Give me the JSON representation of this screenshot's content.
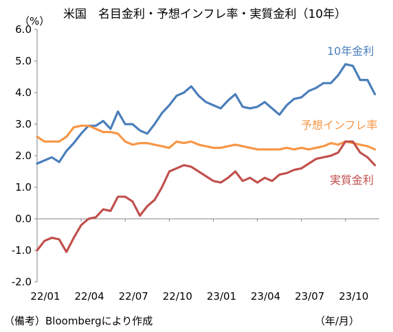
{
  "header": {
    "title": "米国　名目金利・予想インフレ率・実質金利（10年）",
    "unit": "（%）"
  },
  "footer": {
    "note": "（備考）Bloombergにより作成",
    "x_unit": "（年/月）"
  },
  "colors": {
    "nominal": "#4a7ebb",
    "inflation": "#f79646",
    "real": "#c0504d",
    "axis": "#808080"
  },
  "chart_data": {
    "type": "line",
    "title": "米国　名目金利・予想インフレ率・実質金利（10年）",
    "ylabel": "（%）",
    "xlabel": "（年/月）",
    "ylim": [
      -2.0,
      6.0
    ],
    "yticks": [
      "6.0",
      "5.0",
      "4.0",
      "3.0",
      "2.0",
      "1.0",
      "0.0",
      "-1.0",
      "-2.0"
    ],
    "ytick_values": [
      6,
      5,
      4,
      3,
      2,
      1,
      0,
      -1,
      -2
    ],
    "xticks": [
      "22/01",
      "22/04",
      "22/07",
      "22/10",
      "23/01",
      "23/04",
      "23/07",
      "23/10"
    ],
    "xtick_positions": [
      0,
      3,
      6,
      9,
      12,
      15,
      18,
      21
    ],
    "xlim": [
      0,
      23.3
    ],
    "grid": false,
    "series": [
      {
        "name": "10年金利",
        "color": "#4a7ebb",
        "x": [
          0,
          0.5,
          1,
          1.5,
          2,
          2.5,
          3,
          3.5,
          4,
          4.5,
          5,
          5.5,
          6,
          6.5,
          7,
          7.5,
          8,
          8.5,
          9,
          9.5,
          10,
          10.5,
          11,
          11.5,
          12,
          12.5,
          13,
          13.5,
          14,
          14.5,
          15,
          15.5,
          16,
          16.5,
          17,
          17.5,
          18,
          18.5,
          19,
          19.5,
          20,
          20.5,
          21,
          21.5,
          22,
          22.5,
          23
        ],
        "y": [
          1.75,
          1.85,
          1.95,
          1.8,
          2.15,
          2.4,
          2.7,
          2.95,
          2.95,
          3.1,
          2.85,
          3.4,
          3.0,
          3.0,
          2.8,
          2.7,
          3.0,
          3.35,
          3.6,
          3.9,
          4.0,
          4.2,
          3.9,
          3.7,
          3.6,
          3.5,
          3.75,
          3.95,
          3.55,
          3.5,
          3.55,
          3.7,
          3.5,
          3.3,
          3.6,
          3.8,
          3.85,
          4.05,
          4.15,
          4.3,
          4.3,
          4.55,
          4.9,
          4.85,
          4.4,
          4.4,
          3.95
        ],
        "label": "10年金利"
      },
      {
        "name": "予想インフレ率",
        "color": "#f79646",
        "x": [
          0,
          0.5,
          1,
          1.5,
          2,
          2.5,
          3,
          3.5,
          4,
          4.5,
          5,
          5.5,
          6,
          6.5,
          7,
          7.5,
          8,
          8.5,
          9,
          9.5,
          10,
          10.5,
          11,
          11.5,
          12,
          12.5,
          13,
          13.5,
          14,
          14.5,
          15,
          15.5,
          16,
          16.5,
          17,
          17.5,
          18,
          18.5,
          19,
          19.5,
          20,
          20.5,
          21,
          21.5,
          22,
          22.5,
          23
        ],
        "y": [
          2.6,
          2.45,
          2.45,
          2.45,
          2.6,
          2.9,
          2.95,
          2.95,
          2.85,
          2.75,
          2.75,
          2.7,
          2.45,
          2.35,
          2.4,
          2.4,
          2.35,
          2.3,
          2.25,
          2.45,
          2.4,
          2.45,
          2.35,
          2.3,
          2.25,
          2.25,
          2.3,
          2.35,
          2.3,
          2.25,
          2.2,
          2.2,
          2.2,
          2.2,
          2.25,
          2.2,
          2.25,
          2.2,
          2.25,
          2.3,
          2.4,
          2.35,
          2.45,
          2.4,
          2.35,
          2.3,
          2.2
        ],
        "label": "予想インフレ率"
      },
      {
        "name": "実質金利",
        "color": "#c0504d",
        "x": [
          0,
          0.5,
          1,
          1.5,
          2,
          2.5,
          3,
          3.5,
          4,
          4.5,
          5,
          5.5,
          6,
          6.5,
          7,
          7.5,
          8,
          8.5,
          9,
          9.5,
          10,
          10.5,
          11,
          11.5,
          12,
          12.5,
          13,
          13.5,
          14,
          14.5,
          15,
          15.5,
          16,
          16.5,
          17,
          17.5,
          18,
          18.5,
          19,
          19.5,
          20,
          20.5,
          21,
          21.5,
          22,
          22.5,
          23
        ],
        "y": [
          -1.0,
          -0.7,
          -0.6,
          -0.65,
          -1.05,
          -0.6,
          -0.2,
          0.0,
          0.05,
          0.3,
          0.25,
          0.7,
          0.7,
          0.55,
          0.1,
          0.4,
          0.6,
          1.0,
          1.5,
          1.6,
          1.7,
          1.65,
          1.5,
          1.35,
          1.2,
          1.15,
          1.3,
          1.5,
          1.2,
          1.3,
          1.15,
          1.3,
          1.2,
          1.4,
          1.45,
          1.55,
          1.6,
          1.75,
          1.9,
          1.95,
          2.0,
          2.1,
          2.45,
          2.45,
          2.1,
          1.95,
          1.7
        ],
        "label": "実質金利"
      }
    ]
  }
}
